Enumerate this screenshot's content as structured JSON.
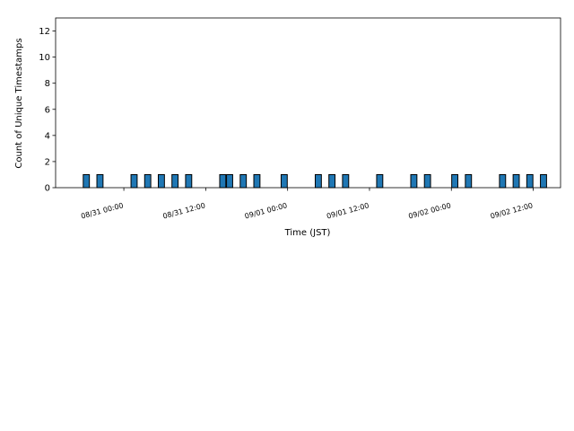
{
  "chart_data": {
    "type": "bar",
    "xlabel": "Time (JST)",
    "ylabel": "Count of Unique Timestamps",
    "x": [
      "08/30 18:00",
      "08/30 20:00",
      "08/31 01:00",
      "08/31 03:00",
      "08/31 05:00",
      "08/31 07:00",
      "08/31 09:00",
      "08/31 14:00",
      "08/31 15:00",
      "08/31 17:00",
      "08/31 19:00",
      "08/31 23:00",
      "09/01 04:00",
      "09/01 06:00",
      "09/01 08:00",
      "09/01 13:00",
      "09/01 18:00",
      "09/01 20:00",
      "09/02 00:00",
      "09/02 02:00",
      "09/02 07:00",
      "09/02 09:00",
      "09/02 11:00",
      "09/02 13:00"
    ],
    "values": [
      1,
      1,
      1,
      1,
      1,
      1,
      1,
      1,
      1,
      1,
      1,
      1,
      1,
      1,
      1,
      1,
      1,
      1,
      1,
      1,
      1,
      1,
      1,
      1
    ],
    "color": "#1f77b4",
    "edgecolor": "#000000",
    "xlim": [
      "08/30 14:00",
      "09/02 16:00"
    ],
    "xticks": [
      "08/31 00:00",
      "08/31 12:00",
      "09/01 00:00",
      "09/01 12:00",
      "09/02 00:00",
      "09/02 12:00"
    ],
    "ylim": [
      0,
      13
    ],
    "yticks": [
      0,
      2,
      4,
      6,
      8,
      10,
      12
    ],
    "grid": false
  }
}
